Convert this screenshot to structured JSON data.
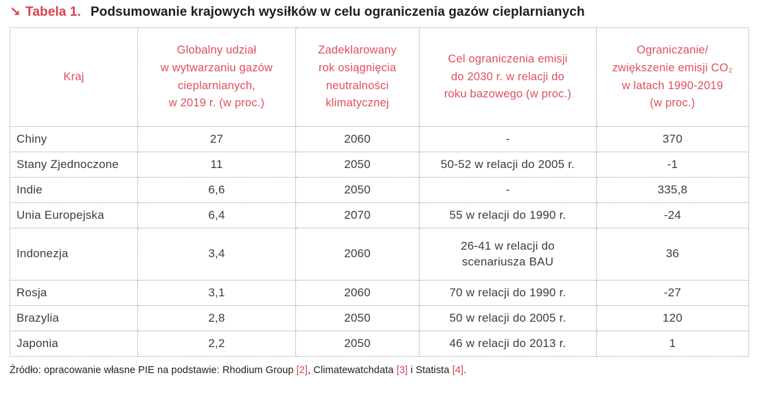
{
  "title": {
    "arrow": "↘",
    "label": "Tabela 1.",
    "text": "Podsumowanie krajowych wysiłków w celu ograniczenia gazów cieplarnianych"
  },
  "chart_data": {
    "type": "table",
    "headers": [
      "Kraj",
      "Globalny udział\nw wytwarzaniu gazów\ncieplarnianych,\nw 2019 r. (w proc.)",
      "Zadeklarowany\nrok osiągnięcia\nneutralności\nklimatycznej",
      "Cel ograniczenia emisji\ndo 2030 r. w relacji do\nroku bazowego (w proc.)",
      "Ograniczanie/\nzwiększenie emisji CO₂\nw latach 1990-2019\n(w proc.)"
    ],
    "rows": [
      {
        "country": "Chiny",
        "global_share_2019_pct": "27",
        "neutrality_year": "2060",
        "reduction_target_2030": "-",
        "co2_change_1990_2019_pct": "370"
      },
      {
        "country": "Stany Zjednoczone",
        "global_share_2019_pct": "11",
        "neutrality_year": "2050",
        "reduction_target_2030": "50-52 w relacji do 2005 r.",
        "co2_change_1990_2019_pct": "-1"
      },
      {
        "country": "Indie",
        "global_share_2019_pct": "6,6",
        "neutrality_year": "2050",
        "reduction_target_2030": "-",
        "co2_change_1990_2019_pct": "335,8"
      },
      {
        "country": "Unia Europejska",
        "global_share_2019_pct": "6,4",
        "neutrality_year": "2070",
        "reduction_target_2030": "55 w relacji do 1990 r.",
        "co2_change_1990_2019_pct": "-24"
      },
      {
        "country": "Indonezja",
        "global_share_2019_pct": "3,4",
        "neutrality_year": "2060",
        "reduction_target_2030": "26-41 w relacji do\nscenariusza BAU",
        "co2_change_1990_2019_pct": "36"
      },
      {
        "country": "Rosja",
        "global_share_2019_pct": "3,1",
        "neutrality_year": "2060",
        "reduction_target_2030": "70 w relacji do 1990 r.",
        "co2_change_1990_2019_pct": "-27"
      },
      {
        "country": "Brazylia",
        "global_share_2019_pct": "2,8",
        "neutrality_year": "2050",
        "reduction_target_2030": "50 w relacji do 2005 r.",
        "co2_change_1990_2019_pct": "120"
      },
      {
        "country": "Japonia",
        "global_share_2019_pct": "2,2",
        "neutrality_year": "2050",
        "reduction_target_2030": "46 w relacji do 2013 r.",
        "co2_change_1990_2019_pct": "1"
      }
    ]
  },
  "source": {
    "prefix": "Źródło: opracowanie własne PIE na podstawie: Rhodium Group ",
    "ref2": "[2]",
    "mid1": ", Climatewatchdata ",
    "ref3": "[3]",
    "mid2": " i Statista ",
    "ref4": "[4]",
    "suffix": "."
  },
  "colors": {
    "accent_red": "#d9404e",
    "header_red": "#e04f5b",
    "border_gray": "#9b9b9b",
    "text_dark": "#1d1d1b",
    "cell_text": "#3c3c3c"
  }
}
